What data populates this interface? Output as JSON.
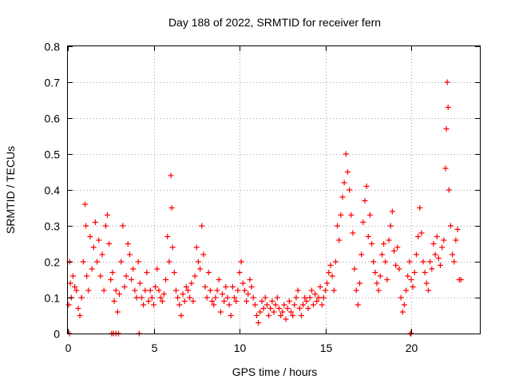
{
  "chart_data": {
    "type": "scatter",
    "title": "Day 188 of 2022, SRMTID for receiver fern",
    "xlabel": "GPS time / hours",
    "ylabel": "SRMTID / TECUs",
    "xlim": [
      0,
      24
    ],
    "ylim": [
      0,
      0.8
    ],
    "xticks": [
      0,
      5,
      10,
      15,
      20
    ],
    "yticks": [
      0,
      0.1,
      0.2,
      0.3,
      0.4,
      0.5,
      0.6,
      0.7,
      0.8
    ],
    "xtick_labels": [
      "0",
      "5",
      "10",
      "15",
      "20"
    ],
    "ytick_labels": [
      "0",
      "0.1",
      "0.2",
      "0.3",
      "0.4",
      "0.5",
      "0.6",
      "0.7",
      "0.8"
    ],
    "grid": true,
    "marker": "+",
    "color": "#ff0000",
    "series": [
      {
        "name": "SRMTID",
        "x": [
          0.05,
          0.1,
          0.15,
          0.2,
          0.3,
          0.4,
          0.5,
          0.6,
          0.7,
          0.8,
          0.9,
          1.0,
          1.05,
          1.1,
          1.2,
          1.3,
          1.4,
          1.5,
          1.6,
          1.7,
          1.8,
          1.9,
          2.0,
          2.1,
          2.2,
          2.3,
          2.4,
          2.5,
          2.6,
          2.7,
          2.8,
          2.9,
          3.0,
          3.1,
          3.2,
          3.3,
          3.4,
          3.5,
          3.6,
          3.7,
          3.8,
          3.9,
          4.0,
          4.1,
          4.2,
          4.3,
          4.4,
          4.5,
          4.6,
          4.7,
          4.8,
          4.9,
          5.0,
          5.1,
          5.2,
          5.3,
          5.4,
          5.5,
          5.6,
          5.7,
          5.8,
          5.9,
          6.0,
          6.05,
          6.1,
          6.2,
          6.3,
          6.4,
          6.5,
          6.6,
          6.7,
          6.8,
          6.9,
          7.0,
          7.1,
          7.2,
          7.3,
          7.4,
          7.5,
          7.6,
          7.7,
          7.8,
          7.9,
          8.0,
          8.1,
          8.2,
          8.3,
          8.4,
          8.5,
          8.6,
          8.7,
          8.8,
          8.9,
          9.0,
          9.1,
          9.2,
          9.3,
          9.4,
          9.5,
          9.6,
          9.7,
          9.8,
          9.9,
          10.0,
          10.1,
          10.2,
          10.3,
          10.4,
          10.5,
          10.6,
          10.7,
          10.8,
          10.9,
          11.0,
          11.1,
          11.2,
          11.3,
          11.4,
          11.5,
          11.6,
          11.7,
          11.8,
          11.9,
          12.0,
          12.1,
          12.2,
          12.3,
          12.4,
          12.5,
          12.6,
          12.7,
          12.8,
          12.9,
          13.0,
          13.1,
          13.2,
          13.3,
          13.4,
          13.5,
          13.6,
          13.7,
          13.8,
          13.9,
          14.0,
          14.1,
          14.2,
          14.3,
          14.4,
          14.5,
          14.6,
          14.7,
          14.8,
          14.9,
          15.0,
          15.1,
          15.2,
          15.3,
          15.4,
          15.5,
          15.6,
          15.7,
          15.8,
          15.9,
          16.0,
          16.1,
          16.2,
          16.3,
          16.4,
          16.5,
          16.6,
          16.7,
          16.8,
          16.9,
          17.0,
          17.1,
          17.2,
          17.3,
          17.4,
          17.5,
          17.6,
          17.7,
          17.8,
          17.9,
          18.0,
          18.1,
          18.2,
          18.3,
          18.4,
          18.5,
          18.6,
          18.7,
          18.8,
          18.9,
          19.0,
          19.1,
          19.2,
          19.3,
          19.4,
          19.5,
          19.6,
          19.7,
          19.8,
          19.9,
          20.0,
          20.1,
          20.2,
          20.3,
          20.4,
          20.5,
          20.6,
          20.7,
          20.8,
          20.9,
          21.0,
          21.1,
          21.2,
          21.3,
          21.4,
          21.5,
          21.6,
          21.7,
          21.8,
          21.9,
          22.0,
          22.05,
          22.1,
          22.15,
          22.2,
          22.3,
          22.4,
          22.5,
          22.6,
          22.7,
          22.8,
          22.9,
          0.1,
          2.55,
          2.65,
          2.8,
          2.95,
          4.15,
          19.95,
          20.0
        ],
        "y": [
          0.08,
          0.2,
          0.14,
          0.1,
          0.16,
          0.13,
          0.12,
          0.07,
          0.05,
          0.1,
          0.2,
          0.36,
          0.3,
          0.16,
          0.12,
          0.27,
          0.18,
          0.24,
          0.31,
          0.2,
          0.26,
          0.16,
          0.22,
          0.12,
          0.3,
          0.33,
          0.25,
          0.15,
          0.17,
          0.09,
          0.12,
          0.06,
          0.11,
          0.2,
          0.3,
          0.13,
          0.16,
          0.25,
          0.22,
          0.15,
          0.18,
          0.12,
          0.1,
          0.2,
          0.14,
          0.1,
          0.08,
          0.12,
          0.17,
          0.09,
          0.12,
          0.1,
          0.08,
          0.13,
          0.18,
          0.12,
          0.1,
          0.09,
          0.11,
          0.15,
          0.27,
          0.2,
          0.44,
          0.35,
          0.24,
          0.17,
          0.12,
          0.1,
          0.08,
          0.05,
          0.11,
          0.09,
          0.13,
          0.12,
          0.1,
          0.14,
          0.09,
          0.16,
          0.24,
          0.2,
          0.18,
          0.3,
          0.22,
          0.13,
          0.1,
          0.17,
          0.12,
          0.09,
          0.08,
          0.1,
          0.12,
          0.15,
          0.06,
          0.11,
          0.09,
          0.13,
          0.1,
          0.08,
          0.05,
          0.13,
          0.1,
          0.09,
          0.12,
          0.17,
          0.2,
          0.14,
          0.12,
          0.09,
          0.11,
          0.15,
          0.13,
          0.1,
          0.08,
          0.05,
          0.03,
          0.06,
          0.09,
          0.07,
          0.1,
          0.08,
          0.05,
          0.07,
          0.09,
          0.06,
          0.08,
          0.1,
          0.07,
          0.05,
          0.06,
          0.08,
          0.04,
          0.07,
          0.09,
          0.06,
          0.05,
          0.08,
          0.1,
          0.12,
          0.07,
          0.05,
          0.08,
          0.1,
          0.09,
          0.07,
          0.1,
          0.12,
          0.08,
          0.11,
          0.09,
          0.1,
          0.13,
          0.08,
          0.1,
          0.12,
          0.14,
          0.17,
          0.19,
          0.16,
          0.12,
          0.2,
          0.3,
          0.26,
          0.33,
          0.38,
          0.42,
          0.5,
          0.45,
          0.4,
          0.33,
          0.28,
          0.18,
          0.12,
          0.08,
          0.14,
          0.22,
          0.31,
          0.37,
          0.41,
          0.27,
          0.33,
          0.25,
          0.2,
          0.17,
          0.14,
          0.12,
          0.16,
          0.22,
          0.25,
          0.2,
          0.15,
          0.26,
          0.3,
          0.34,
          0.23,
          0.19,
          0.24,
          0.18,
          0.1,
          0.06,
          0.08,
          0.12,
          0.16,
          0.2,
          0.15,
          0.13,
          0.17,
          0.22,
          0.27,
          0.35,
          0.28,
          0.2,
          0.17,
          0.14,
          0.12,
          0.2,
          0.18,
          0.25,
          0.22,
          0.27,
          0.21,
          0.19,
          0.24,
          0.26,
          0.46,
          0.57,
          0.7,
          0.63,
          0.4,
          0.3,
          0.22,
          0.2,
          0.26,
          0.29,
          0.15,
          0.15,
          0.0,
          0.0,
          0.0,
          0.0,
          0.0,
          0.0,
          0.0,
          0.0
        ]
      }
    ]
  }
}
